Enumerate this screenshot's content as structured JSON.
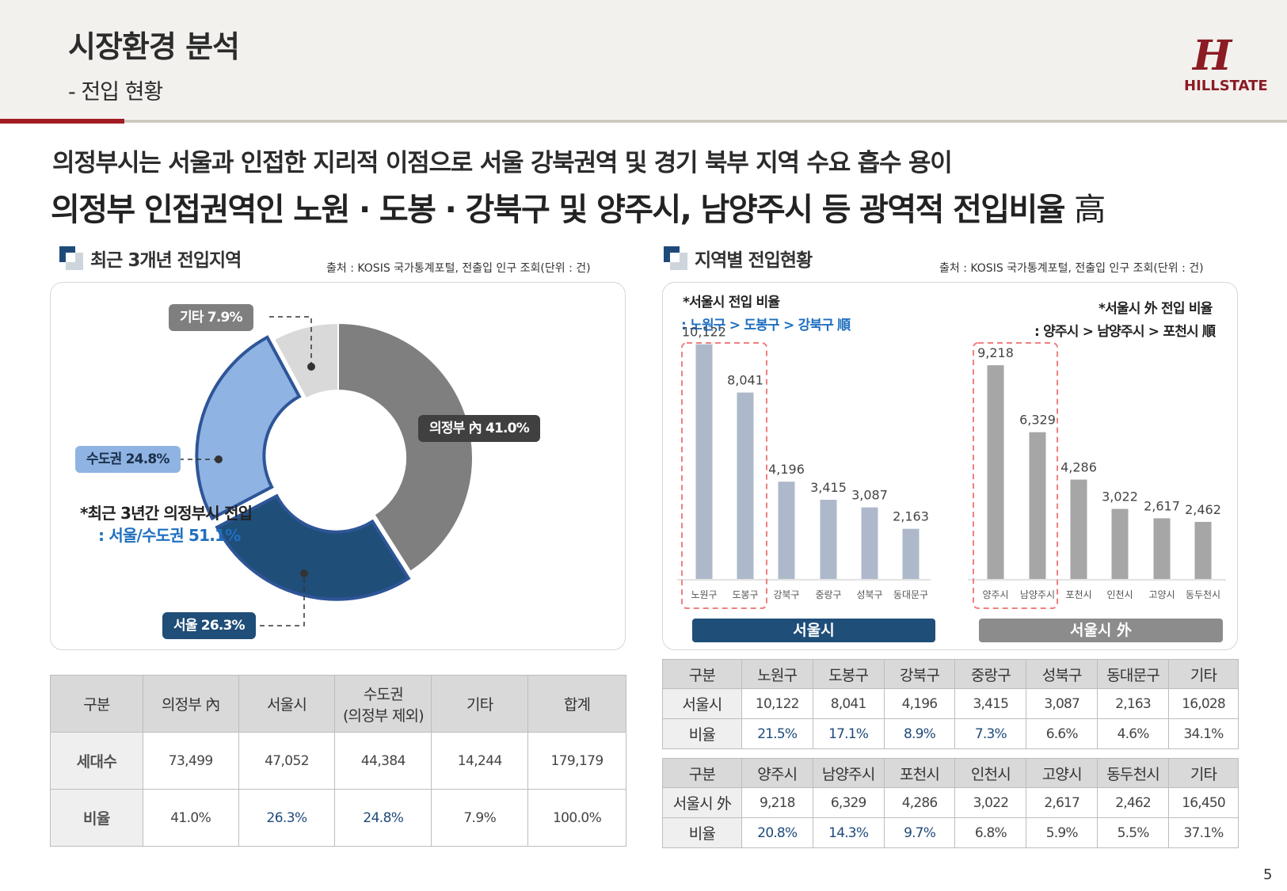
{
  "header": {
    "title": "시장환경 분석",
    "subtitle": "- 전입 현황",
    "logo_mark": "H",
    "logo_text": "HILLSTATE"
  },
  "headline": {
    "line1": "의정부시는 서울과 인접한 지리적 이점으로 서울 강북권역 및 경기 북부 지역 수요 흡수 용이",
    "line2": "의정부 인접권역인  노원 · 도봉 · 강북구 및 양주시, 남양주시 등 광역적 전입비율 ",
    "line2_kanji": "高"
  },
  "left_section": {
    "title": "최근 3개년 전입지역",
    "source": "출처 : KOSIS 국가통계포털, 전출입 인구 조회(단위 : 건)",
    "labels": {
      "uijeongbu": "의정부 內 41.0%",
      "seoul": "서울 26.3%",
      "capital": "수도권 24.8%",
      "other": "기타 7.9%"
    },
    "note_line1": "*최근 3년간 의정부시 전입",
    "note_line2": ": 서울/수도권 51.1%"
  },
  "right_section": {
    "title": "지역별 전입현황",
    "source": "출처 : KOSIS 국가통계포털, 전출입 인구 조회(단위 : 건)",
    "note_left_1": "*서울시 전입 비율",
    "note_left_2": ": 노원구 > 도봉구 > 강북구 順",
    "note_right_1": "*서울시 外 전입 비율",
    "note_right_2": ": 양주시 > 남양주시 > 포천시 順",
    "group_seoul": "서울시",
    "group_outside": "서울시 外"
  },
  "chart_data": [
    {
      "type": "pie",
      "title": "최근 3개년 전입지역",
      "categories": [
        "의정부 內",
        "서울",
        "수도권",
        "기타"
      ],
      "values": [
        41.0,
        26.3,
        24.8,
        7.9
      ],
      "colors": [
        "#7f7f7f",
        "#1f4e79",
        "#8fb4e3",
        "#d9d9d9"
      ]
    },
    {
      "type": "bar",
      "title": "지역별 전입현황",
      "categories": [
        "노원구",
        "도봉구",
        "강북구",
        "중랑구",
        "성북구",
        "동대문구",
        "양주시",
        "남양주시",
        "포천시",
        "인천시",
        "고양시",
        "동두천시"
      ],
      "values": [
        10122,
        8041,
        4196,
        3415,
        3087,
        2163,
        9218,
        6329,
        4286,
        3022,
        2617,
        2462
      ],
      "value_labels": [
        "10,122",
        "8,041",
        "4,196",
        "3,415",
        "3,087",
        "2,163",
        "9,218",
        "6,329",
        "4,286",
        "3,022",
        "2,617",
        "2,462"
      ],
      "series_colors": {
        "seoul": "#adb9ca",
        "outside": "#a6a6a6"
      },
      "ylim": [
        0,
        11000
      ]
    }
  ],
  "table1": {
    "headers": [
      "구분",
      "의정부 內",
      "서울시",
      "수도권\n(의정부 제외)",
      "기타",
      "합계"
    ],
    "header_capital_1": "수도권",
    "header_capital_2": "(의정부 제외)",
    "rows": [
      [
        "세대수",
        "73,499",
        "47,052",
        "44,384",
        "14,244",
        "179,179"
      ],
      [
        "비율",
        "41.0%",
        "26.3%",
        "24.8%",
        "7.9%",
        "100.0%"
      ]
    ]
  },
  "table2": {
    "headers": [
      "구분",
      "노원구",
      "도봉구",
      "강북구",
      "중랑구",
      "성북구",
      "동대문구",
      "기타"
    ],
    "rows": [
      [
        "서울시",
        "10,122",
        "8,041",
        "4,196",
        "3,415",
        "3,087",
        "2,163",
        "16,028"
      ],
      [
        "비율",
        "21.5%",
        "17.1%",
        "8.9%",
        "7.3%",
        "6.6%",
        "4.6%",
        "34.1%"
      ]
    ]
  },
  "table3": {
    "headers": [
      "구분",
      "양주시",
      "남양주시",
      "포천시",
      "인천시",
      "고양시",
      "동두천시",
      "기타"
    ],
    "rows": [
      [
        "서울시 外",
        "9,218",
        "6,329",
        "4,286",
        "3,022",
        "2,617",
        "2,462",
        "16,450"
      ],
      [
        "비율",
        "20.8%",
        "14.3%",
        "9.7%",
        "6.8%",
        "5.9%",
        "5.5%",
        "37.1%"
      ]
    ]
  },
  "page_number": "5"
}
